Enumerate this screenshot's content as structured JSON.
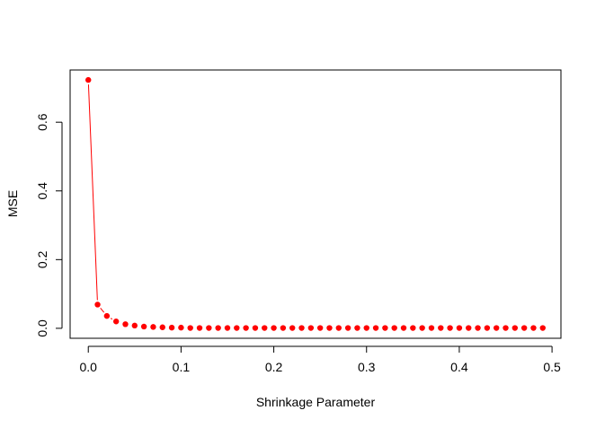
{
  "chart_data": {
    "type": "line",
    "xlabel": "Shrinkage Parameter",
    "ylabel": "MSE",
    "xlim": [
      -0.0196,
      0.5096
    ],
    "ylim": [
      -0.029,
      0.752
    ],
    "xticks": [
      0.0,
      0.1,
      0.2,
      0.3,
      0.4,
      0.5
    ],
    "xtick_labels": [
      "0.0",
      "0.1",
      "0.2",
      "0.3",
      "0.4",
      "0.5"
    ],
    "yticks": [
      0.0,
      0.2,
      0.4,
      0.6
    ],
    "ytick_labels": [
      "0.0",
      "0.2",
      "0.4",
      "0.6"
    ],
    "grid": false,
    "series": [
      {
        "color": "#ff0000",
        "marker": "filled-circle",
        "x": [
          0.0,
          0.01,
          0.02,
          0.03,
          0.04,
          0.05,
          0.06,
          0.07,
          0.08,
          0.09,
          0.1,
          0.11,
          0.12,
          0.13,
          0.14,
          0.15,
          0.16,
          0.17,
          0.18,
          0.19,
          0.2,
          0.21,
          0.22,
          0.23,
          0.24,
          0.25,
          0.26,
          0.27,
          0.28,
          0.29,
          0.3,
          0.31,
          0.32,
          0.33,
          0.34,
          0.35,
          0.36,
          0.37,
          0.38,
          0.39,
          0.4,
          0.41,
          0.42,
          0.43,
          0.44,
          0.45,
          0.46,
          0.47,
          0.48,
          0.49
        ],
        "y": [
          0.723,
          0.069,
          0.036,
          0.02,
          0.012,
          0.008,
          0.005,
          0.004,
          0.003,
          0.002,
          0.002,
          0.001,
          0.001,
          0.001,
          0.001,
          0.001,
          0.001,
          0.001,
          0.001,
          0.001,
          0.001,
          0.001,
          0.001,
          0.001,
          0.001,
          0.001,
          0.001,
          0.001,
          0.001,
          0.001,
          0.001,
          0.001,
          0.001,
          0.001,
          0.001,
          0.001,
          0.001,
          0.001,
          0.001,
          0.001,
          0.001,
          0.001,
          0.001,
          0.001,
          0.001,
          0.001,
          0.001,
          0.001,
          0.001,
          0.001
        ]
      }
    ]
  }
}
